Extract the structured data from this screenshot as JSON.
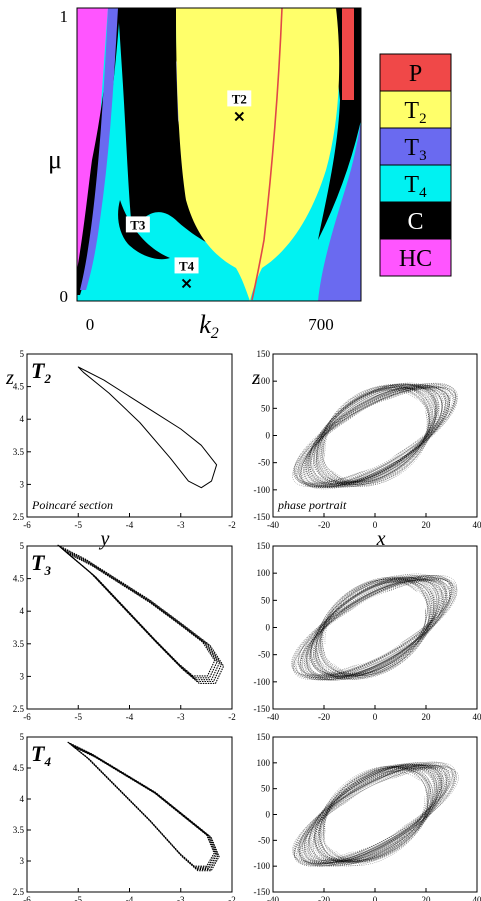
{
  "colors": {
    "P": "#f04848",
    "T2": "#ffff6a",
    "T3": "#6a6af0",
    "T4": "#00f2f2",
    "C": "#000000",
    "HC": "#ff55ff"
  },
  "chart_data": [
    {
      "type": "heatmap",
      "xlabel": "k",
      "xlabel_sub": "2",
      "ylabel": "μ",
      "xticks": [
        "0",
        "700"
      ],
      "yticks": [
        "0",
        "1"
      ],
      "xlim": [
        0,
        700
      ],
      "ylim": [
        0,
        1
      ],
      "legend": {
        "placement": "right",
        "entries": [
          {
            "key": "P",
            "label": "P",
            "sub": ""
          },
          {
            "key": "T2",
            "label": "T",
            "sub": "2"
          },
          {
            "key": "T3",
            "label": "T",
            "sub": "3"
          },
          {
            "key": "T4",
            "label": "T",
            "sub": "4"
          },
          {
            "key": "C",
            "label": "C",
            "sub": ""
          },
          {
            "key": "HC",
            "label": "HC",
            "sub": ""
          }
        ]
      },
      "markers": [
        {
          "label": "T2",
          "x": 400,
          "y": 0.63
        },
        {
          "label": "T3",
          "x": 150,
          "y": 0.2
        },
        {
          "label": "T4",
          "x": 270,
          "y": 0.06
        }
      ]
    },
    {
      "type": "scatter",
      "panel_label": "T",
      "panel_sub": "2",
      "annotation": "Poincaré section",
      "xlabel": "y",
      "ylabel": "z",
      "xlim": [
        -6,
        -2
      ],
      "ylim": [
        2.5,
        5
      ],
      "xticks": [
        "-6",
        "-5",
        "-4",
        "-3",
        "-2"
      ],
      "yticks": [
        "2.5",
        "3",
        "3.5",
        "4",
        "4.5",
        "5"
      ],
      "curve": {
        "kind": "torus",
        "thickness": 0.0,
        "loop": [
          [
            -5.0,
            4.8
          ],
          [
            -4.5,
            4.6
          ],
          [
            -4.0,
            4.35
          ],
          [
            -3.5,
            4.1
          ],
          [
            -3.0,
            3.85
          ],
          [
            -2.6,
            3.6
          ],
          [
            -2.3,
            3.3
          ],
          [
            -2.4,
            3.05
          ],
          [
            -2.6,
            2.95
          ],
          [
            -2.85,
            3.05
          ],
          [
            -3.2,
            3.4
          ],
          [
            -3.8,
            3.95
          ],
          [
            -4.4,
            4.4
          ],
          [
            -4.9,
            4.72
          ]
        ]
      }
    },
    {
      "type": "scatter",
      "panel_label": "",
      "panel_sub": "",
      "annotation": "phase portrait",
      "xlabel": "x",
      "ylabel": "z",
      "xlim": [
        -40,
        40
      ],
      "ylim": [
        -150,
        150
      ],
      "xticks": [
        "-40",
        "-20",
        "0",
        "20",
        "40"
      ],
      "yticks": [
        "-150",
        "-100",
        "-50",
        "0",
        "50",
        "100",
        "150"
      ],
      "curve": {
        "kind": "phase"
      }
    },
    {
      "type": "scatter",
      "panel_label": "T",
      "panel_sub": "3",
      "annotation": "",
      "xlabel": "",
      "ylabel": "",
      "xlim": [
        -6,
        -2
      ],
      "ylim": [
        2.5,
        5
      ],
      "xticks": [
        "-6",
        "-5",
        "-4",
        "-3",
        "-2"
      ],
      "yticks": [
        "2.5",
        "3",
        "3.5",
        "4",
        "4.5",
        "5"
      ],
      "curve": {
        "kind": "torus",
        "thickness": 0.12,
        "loop": [
          [
            -5.3,
            4.95
          ],
          [
            -4.8,
            4.75
          ],
          [
            -4.2,
            4.45
          ],
          [
            -3.6,
            4.15
          ],
          [
            -3.0,
            3.8
          ],
          [
            -2.5,
            3.5
          ],
          [
            -2.25,
            3.2
          ],
          [
            -2.4,
            2.95
          ],
          [
            -2.7,
            2.95
          ],
          [
            -3.0,
            3.15
          ],
          [
            -3.5,
            3.55
          ],
          [
            -4.1,
            4.05
          ],
          [
            -4.7,
            4.55
          ],
          [
            -5.15,
            4.85
          ]
        ]
      }
    },
    {
      "type": "scatter",
      "panel_label": "",
      "panel_sub": "",
      "annotation": "",
      "xlabel": "",
      "ylabel": "",
      "xlim": [
        -40,
        40
      ],
      "ylim": [
        -150,
        150
      ],
      "xticks": [
        "-40",
        "-20",
        "0",
        "20",
        "40"
      ],
      "yticks": [
        "-150",
        "-100",
        "-50",
        "0",
        "50",
        "100",
        "150"
      ],
      "curve": {
        "kind": "phase"
      }
    },
    {
      "type": "scatter",
      "panel_label": "T",
      "panel_sub": "4",
      "annotation": "",
      "xlabel": "",
      "ylabel": "",
      "xlim": [
        -6,
        -2
      ],
      "ylim": [
        2.5,
        5
      ],
      "xticks": [
        "-6",
        "-5",
        "-4",
        "-3",
        "-2"
      ],
      "yticks": [
        "2.5",
        "3",
        "3.5",
        "4",
        "4.5",
        "5"
      ],
      "curve": {
        "kind": "torus",
        "thickness": 0.07,
        "loop": [
          [
            -5.15,
            4.88
          ],
          [
            -4.7,
            4.7
          ],
          [
            -4.1,
            4.4
          ],
          [
            -3.5,
            4.1
          ],
          [
            -2.9,
            3.7
          ],
          [
            -2.45,
            3.4
          ],
          [
            -2.3,
            3.1
          ],
          [
            -2.45,
            2.88
          ],
          [
            -2.7,
            2.88
          ],
          [
            -3.0,
            3.1
          ],
          [
            -3.6,
            3.65
          ],
          [
            -4.2,
            4.15
          ],
          [
            -4.8,
            4.65
          ],
          [
            -5.1,
            4.85
          ]
        ]
      }
    },
    {
      "type": "scatter",
      "panel_label": "",
      "panel_sub": "",
      "annotation": "",
      "xlabel": "",
      "ylabel": "",
      "xlim": [
        -40,
        40
      ],
      "ylim": [
        -150,
        150
      ],
      "xticks": [
        "-40",
        "-20",
        "0",
        "20",
        "40"
      ],
      "yticks": [
        "-150",
        "-100",
        "-50",
        "0",
        "50",
        "100",
        "150"
      ],
      "curve": {
        "kind": "phase"
      }
    }
  ]
}
